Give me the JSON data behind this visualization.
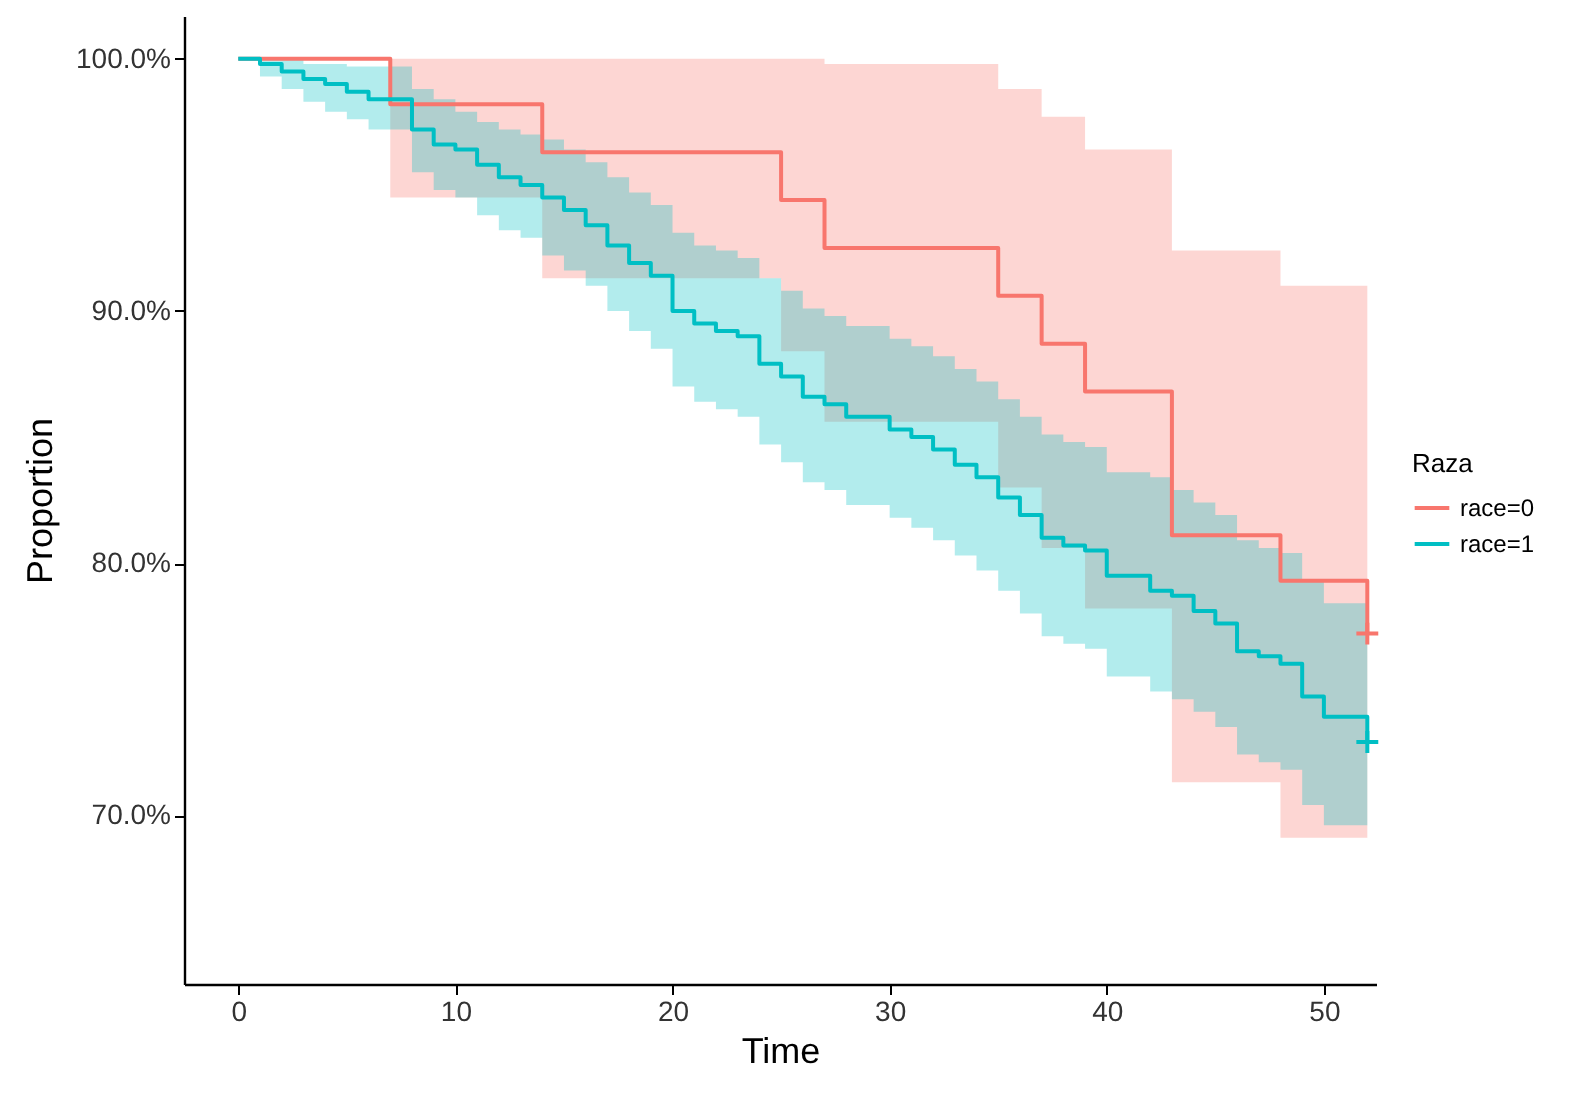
{
  "chart_data": {
    "type": "step",
    "xlabel": "Time",
    "ylabel": "Proportion",
    "legend_title": "Raza",
    "legend": "right",
    "grid": false,
    "marker": "none",
    "line_style": "solid",
    "xlim": [
      -2.5,
      52.4
    ],
    "xticks": [
      0,
      10,
      20,
      30,
      40,
      50
    ],
    "ylim": [
      63.3,
      101.7
    ],
    "yticks": [
      {
        "value": 70,
        "label": "70.0%"
      },
      {
        "value": 80,
        "label": "80.0%"
      },
      {
        "value": 90,
        "label": "90.0%"
      },
      {
        "value": 100,
        "label": "100.0%"
      }
    ],
    "series": [
      {
        "name": "race=0",
        "color": "#f8766d",
        "x": [
          0,
          7,
          14,
          25,
          27,
          35,
          37,
          39,
          43,
          48,
          52
        ],
        "values": [
          100,
          98.2,
          96.3,
          94.4,
          92.5,
          90.6,
          88.7,
          86.8,
          81.1,
          79.3,
          77.2
        ],
        "upper": [
          100,
          100,
          100,
          100,
          99.8,
          98.8,
          97.7,
          96.4,
          92.4,
          91.0,
          91.0
        ],
        "lower": [
          100,
          94.5,
          91.3,
          88.4,
          85.6,
          83.0,
          80.6,
          78.2,
          71.3,
          69.1,
          69.1
        ]
      },
      {
        "name": "race=1",
        "color": "#00bfc4",
        "x": [
          0,
          1,
          2,
          3,
          4,
          5,
          6,
          8,
          9,
          10,
          11,
          12,
          13,
          14,
          15,
          16,
          17,
          18,
          19,
          20,
          21,
          22,
          23,
          24,
          25,
          26,
          27,
          28,
          30,
          31,
          32,
          33,
          34,
          35,
          36,
          37,
          38,
          39,
          40,
          42,
          43,
          44,
          45,
          46,
          47,
          48,
          49,
          50,
          52
        ],
        "values": [
          100,
          99.8,
          99.5,
          99.2,
          99.0,
          98.7,
          98.4,
          97.2,
          96.6,
          96.4,
          95.8,
          95.3,
          95.0,
          94.5,
          94.0,
          93.4,
          92.6,
          91.9,
          91.4,
          90.0,
          89.5,
          89.2,
          89.0,
          87.9,
          87.4,
          86.6,
          86.3,
          85.8,
          85.3,
          85.0,
          84.5,
          83.9,
          83.4,
          82.6,
          81.9,
          81.0,
          80.7,
          80.5,
          79.5,
          78.9,
          78.7,
          78.1,
          77.6,
          76.5,
          76.3,
          76.0,
          74.7,
          73.9,
          72.9
        ],
        "upper": [
          100,
          100,
          100,
          99.8,
          99.8,
          99.7,
          99.7,
          98.8,
          98.4,
          97.9,
          97.5,
          97.2,
          97.0,
          96.8,
          96.4,
          95.9,
          95.3,
          94.7,
          94.2,
          93.1,
          92.6,
          92.4,
          92.1,
          91.3,
          90.8,
          90.1,
          89.8,
          89.4,
          88.9,
          88.6,
          88.2,
          87.7,
          87.2,
          86.5,
          85.8,
          85.1,
          84.8,
          84.6,
          83.6,
          83.4,
          82.9,
          82.4,
          81.9,
          80.9,
          80.6,
          80.4,
          79.3,
          78.4,
          78.4
        ],
        "lower": [
          100,
          99.3,
          98.8,
          98.3,
          97.9,
          97.6,
          97.2,
          95.5,
          94.8,
          94.5,
          93.8,
          93.2,
          92.9,
          92.2,
          91.6,
          91.0,
          90.0,
          89.2,
          88.5,
          87.0,
          86.4,
          86.1,
          85.8,
          84.7,
          84.0,
          83.2,
          82.9,
          82.3,
          81.8,
          81.4,
          80.9,
          80.3,
          79.7,
          78.9,
          78.0,
          77.1,
          76.8,
          76.6,
          75.5,
          74.9,
          74.6,
          74.1,
          73.5,
          72.4,
          72.1,
          71.8,
          70.4,
          69.6,
          69.6
        ]
      },
      {
        "type": "scatter",
        "marker": "cross",
        "color": "#f8766d",
        "x": [
          52
        ],
        "values": [
          77.2
        ]
      },
      {
        "type": "scatter",
        "marker": "cross",
        "color": "#00bfc4",
        "x": [
          52
        ],
        "values": [
          72.9
        ]
      }
    ]
  }
}
